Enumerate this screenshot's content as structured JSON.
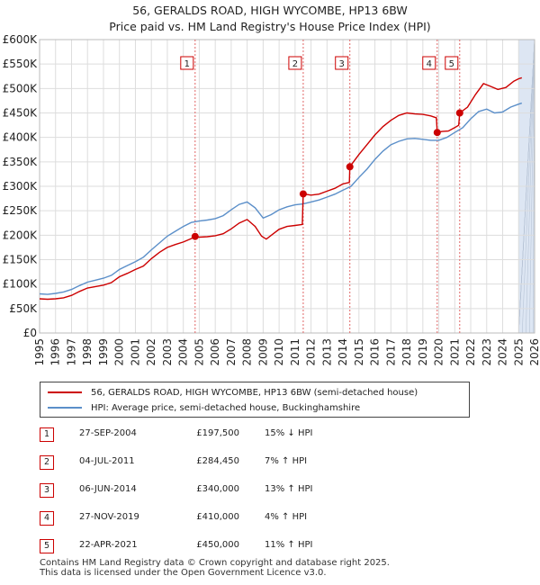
{
  "title_line1": "56, GERALDS ROAD, HIGH WYCOMBE, HP13 6BW",
  "title_line2": "Price paid vs. HM Land Registry's House Price Index (HPI)",
  "colors": {
    "price": "#cc0000",
    "hpi": "#5b8fc9",
    "shade": "#dde6f3",
    "grid": "#dddddd"
  },
  "legend": [
    {
      "label": "56, GERALDS ROAD, HIGH WYCOMBE, HP13 6BW (semi-detached house)",
      "color": "#cc0000"
    },
    {
      "label": "HPI: Average price, semi-detached house, Buckinghamshire",
      "color": "#5b8fc9"
    }
  ],
  "sales": [
    {
      "num": "1",
      "date": "27-SEP-2004",
      "price": "£197,500",
      "hpi": "15% ↓ HPI"
    },
    {
      "num": "2",
      "date": "04-JUL-2011",
      "price": "£284,450",
      "hpi": "7% ↑ HPI"
    },
    {
      "num": "3",
      "date": "06-JUN-2014",
      "price": "£340,000",
      "hpi": "13% ↑ HPI"
    },
    {
      "num": "4",
      "date": "27-NOV-2019",
      "price": "£410,000",
      "hpi": "4% ↑ HPI"
    },
    {
      "num": "5",
      "date": "22-APR-2021",
      "price": "£450,000",
      "hpi": "11% ↑ HPI"
    }
  ],
  "footer_line1": "Contains HM Land Registry data © Crown copyright and database right 2025.",
  "footer_line2": "This data is licensed under the Open Government Licence v3.0.",
  "chart_data": {
    "type": "line",
    "xlim": [
      1995,
      2026
    ],
    "ylim": [
      0,
      600000
    ],
    "x_ticks": [
      "1995",
      "1996",
      "1997",
      "1998",
      "1999",
      "2000",
      "2001",
      "2002",
      "2003",
      "2004",
      "2005",
      "2006",
      "2007",
      "2008",
      "2009",
      "2010",
      "2011",
      "2012",
      "2013",
      "2014",
      "2015",
      "2016",
      "2017",
      "2018",
      "2019",
      "2020",
      "2021",
      "2022",
      "2023",
      "2024",
      "2025",
      "2026"
    ],
    "y_ticks": [
      {
        "value": 0,
        "label": "£0"
      },
      {
        "value": 50000,
        "label": "£50K"
      },
      {
        "value": 100000,
        "label": "£100K"
      },
      {
        "value": 150000,
        "label": "£150K"
      },
      {
        "value": 200000,
        "label": "£200K"
      },
      {
        "value": 250000,
        "label": "£250K"
      },
      {
        "value": 300000,
        "label": "£300K"
      },
      {
        "value": 350000,
        "label": "£350K"
      },
      {
        "value": 400000,
        "label": "£400K"
      },
      {
        "value": 450000,
        "label": "£450K"
      },
      {
        "value": 500000,
        "label": "£500K"
      },
      {
        "value": 550000,
        "label": "£550K"
      },
      {
        "value": 600000,
        "label": "£600K"
      }
    ],
    "future_shade_from": 2025.0,
    "sale_markers": [
      {
        "num": "1",
        "x": 2004.74,
        "y": 197500
      },
      {
        "num": "2",
        "x": 2011.51,
        "y": 284450
      },
      {
        "num": "3",
        "x": 2014.43,
        "y": 340000
      },
      {
        "num": "4",
        "x": 2019.9,
        "y": 410000
      },
      {
        "num": "5",
        "x": 2021.31,
        "y": 450000
      }
    ],
    "series": [
      {
        "name": "56, GERALDS ROAD, HIGH WYCOMBE, HP13 6BW (semi-detached house)",
        "color": "#cc0000",
        "points": [
          [
            1995,
            70000
          ],
          [
            1995.5,
            69000
          ],
          [
            1996,
            70000
          ],
          [
            1996.5,
            72000
          ],
          [
            1997,
            77000
          ],
          [
            1997.5,
            85000
          ],
          [
            1998,
            92000
          ],
          [
            1998.5,
            95000
          ],
          [
            1999,
            98000
          ],
          [
            1999.5,
            103000
          ],
          [
            2000,
            115000
          ],
          [
            2000.5,
            122000
          ],
          [
            2001,
            130000
          ],
          [
            2001.5,
            137000
          ],
          [
            2002,
            152000
          ],
          [
            2002.5,
            165000
          ],
          [
            2003,
            175000
          ],
          [
            2003.5,
            181000
          ],
          [
            2004,
            186000
          ],
          [
            2004.5,
            193000
          ],
          [
            2004.74,
            197500
          ],
          [
            2005,
            196000
          ],
          [
            2005.5,
            197000
          ],
          [
            2006,
            199000
          ],
          [
            2006.5,
            203000
          ],
          [
            2007,
            213000
          ],
          [
            2007.5,
            225000
          ],
          [
            2008,
            232000
          ],
          [
            2008.5,
            218000
          ],
          [
            2008.9,
            198000
          ],
          [
            2009.2,
            192000
          ],
          [
            2009.6,
            202000
          ],
          [
            2010,
            212000
          ],
          [
            2010.5,
            218000
          ],
          [
            2011,
            220000
          ],
          [
            2011.45,
            222000
          ],
          [
            2011.51,
            284450
          ],
          [
            2012,
            282000
          ],
          [
            2012.5,
            284000
          ],
          [
            2013,
            290000
          ],
          [
            2013.5,
            296000
          ],
          [
            2014,
            305000
          ],
          [
            2014.4,
            308000
          ],
          [
            2014.43,
            340000
          ],
          [
            2015,
            365000
          ],
          [
            2015.5,
            385000
          ],
          [
            2016,
            405000
          ],
          [
            2016.5,
            422000
          ],
          [
            2017,
            435000
          ],
          [
            2017.5,
            445000
          ],
          [
            2018,
            450000
          ],
          [
            2018.5,
            448000
          ],
          [
            2019,
            447000
          ],
          [
            2019.5,
            444000
          ],
          [
            2019.85,
            440000
          ],
          [
            2019.9,
            410000
          ],
          [
            2020.2,
            412000
          ],
          [
            2020.6,
            413000
          ],
          [
            2021,
            420000
          ],
          [
            2021.25,
            425000
          ],
          [
            2021.31,
            450000
          ],
          [
            2021.8,
            462000
          ],
          [
            2022.3,
            488000
          ],
          [
            2022.8,
            510000
          ],
          [
            2023.2,
            505000
          ],
          [
            2023.7,
            498000
          ],
          [
            2024.2,
            502000
          ],
          [
            2024.7,
            515000
          ],
          [
            2025,
            520000
          ],
          [
            2025.2,
            522000
          ]
        ]
      },
      {
        "name": "HPI: Average price, semi-detached house, Buckinghamshire",
        "color": "#5b8fc9",
        "points": [
          [
            1995,
            80000
          ],
          [
            1995.5,
            79000
          ],
          [
            1996,
            81000
          ],
          [
            1996.5,
            84000
          ],
          [
            1997,
            89000
          ],
          [
            1997.5,
            97000
          ],
          [
            1998,
            104000
          ],
          [
            1998.5,
            108000
          ],
          [
            1999,
            112000
          ],
          [
            1999.5,
            118000
          ],
          [
            2000,
            130000
          ],
          [
            2000.5,
            138000
          ],
          [
            2001,
            146000
          ],
          [
            2001.5,
            155000
          ],
          [
            2002,
            170000
          ],
          [
            2002.5,
            184000
          ],
          [
            2003,
            198000
          ],
          [
            2003.5,
            208000
          ],
          [
            2004,
            218000
          ],
          [
            2004.5,
            226000
          ],
          [
            2005,
            229000
          ],
          [
            2005.5,
            231000
          ],
          [
            2006,
            234000
          ],
          [
            2006.5,
            240000
          ],
          [
            2007,
            252000
          ],
          [
            2007.5,
            263000
          ],
          [
            2008,
            268000
          ],
          [
            2008.5,
            256000
          ],
          [
            2009,
            235000
          ],
          [
            2009.5,
            242000
          ],
          [
            2010,
            252000
          ],
          [
            2010.5,
            258000
          ],
          [
            2011,
            262000
          ],
          [
            2011.5,
            264000
          ],
          [
            2012,
            268000
          ],
          [
            2012.5,
            272000
          ],
          [
            2013,
            278000
          ],
          [
            2013.5,
            284000
          ],
          [
            2014,
            292000
          ],
          [
            2014.5,
            300000
          ],
          [
            2015,
            318000
          ],
          [
            2015.5,
            335000
          ],
          [
            2016,
            355000
          ],
          [
            2016.5,
            372000
          ],
          [
            2017,
            385000
          ],
          [
            2017.5,
            392000
          ],
          [
            2018,
            397000
          ],
          [
            2018.5,
            398000
          ],
          [
            2019,
            396000
          ],
          [
            2019.5,
            394000
          ],
          [
            2020,
            394000
          ],
          [
            2020.5,
            400000
          ],
          [
            2021,
            410000
          ],
          [
            2021.5,
            420000
          ],
          [
            2022,
            438000
          ],
          [
            2022.5,
            453000
          ],
          [
            2023,
            458000
          ],
          [
            2023.5,
            450000
          ],
          [
            2024,
            452000
          ],
          [
            2024.5,
            462000
          ],
          [
            2025,
            468000
          ],
          [
            2025.2,
            470000
          ]
        ]
      }
    ]
  }
}
